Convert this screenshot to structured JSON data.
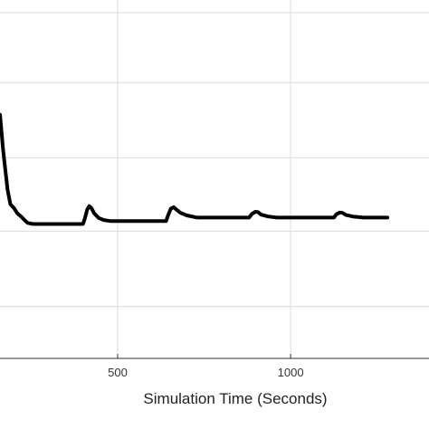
{
  "chart_data": {
    "type": "line",
    "title": "",
    "xlabel": "Simulation Time (Seconds)",
    "ylabel": "",
    "xlim": [
      160,
      1400
    ],
    "ylim": [
      0,
      1
    ],
    "grid": true,
    "x_ticks": [
      500,
      1000
    ],
    "y_gridlines": [
      0.145,
      0.355,
      0.56,
      0.77,
      0.965
    ],
    "series": [
      {
        "color": "#000000",
        "points": [
          [
            160,
            0.68
          ],
          [
            163,
            0.65
          ],
          [
            168,
            0.59
          ],
          [
            175,
            0.53
          ],
          [
            182,
            0.47
          ],
          [
            190,
            0.43
          ],
          [
            200,
            0.42
          ],
          [
            210,
            0.405
          ],
          [
            222,
            0.395
          ],
          [
            232,
            0.385
          ],
          [
            240,
            0.378
          ],
          [
            255,
            0.375
          ],
          [
            300,
            0.375
          ],
          [
            360,
            0.375
          ],
          [
            400,
            0.375
          ],
          [
            405,
            0.39
          ],
          [
            412,
            0.415
          ],
          [
            418,
            0.425
          ],
          [
            424,
            0.42
          ],
          [
            432,
            0.405
          ],
          [
            445,
            0.392
          ],
          [
            460,
            0.386
          ],
          [
            480,
            0.383
          ],
          [
            520,
            0.383
          ],
          [
            580,
            0.383
          ],
          [
            640,
            0.383
          ],
          [
            646,
            0.4
          ],
          [
            654,
            0.418
          ],
          [
            662,
            0.422
          ],
          [
            670,
            0.415
          ],
          [
            682,
            0.406
          ],
          [
            700,
            0.399
          ],
          [
            730,
            0.393
          ],
          [
            780,
            0.393
          ],
          [
            840,
            0.393
          ],
          [
            880,
            0.393
          ],
          [
            888,
            0.403
          ],
          [
            898,
            0.409
          ],
          [
            906,
            0.408
          ],
          [
            915,
            0.401
          ],
          [
            935,
            0.396
          ],
          [
            960,
            0.393
          ],
          [
            1020,
            0.393
          ],
          [
            1080,
            0.393
          ],
          [
            1125,
            0.393
          ],
          [
            1132,
            0.402
          ],
          [
            1142,
            0.407
          ],
          [
            1150,
            0.406
          ],
          [
            1160,
            0.4
          ],
          [
            1180,
            0.396
          ],
          [
            1210,
            0.393
          ],
          [
            1280,
            0.393
          ]
        ]
      }
    ]
  }
}
